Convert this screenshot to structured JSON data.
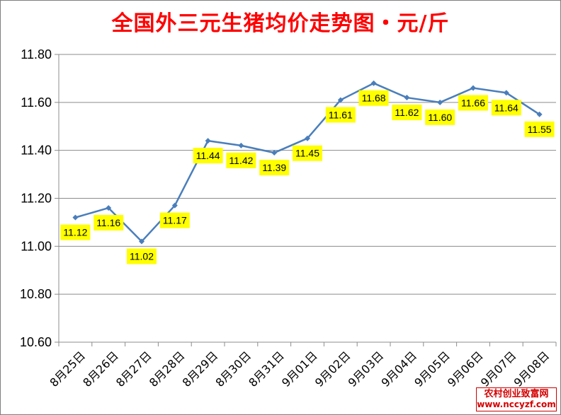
{
  "chart_data": {
    "type": "line",
    "title": "全国外三元生猪均价走势图・元/斤",
    "categories": [
      "8月25日",
      "8月26日",
      "8月27日",
      "8月28日",
      "8月29日",
      "8月30日",
      "8月31日",
      "9月01日",
      "9月02日",
      "9月03日",
      "9月04日",
      "9月05日",
      "9月06日",
      "9月07日",
      "9月08日"
    ],
    "values": [
      11.12,
      11.16,
      11.02,
      11.17,
      11.44,
      11.42,
      11.39,
      11.45,
      11.61,
      11.68,
      11.62,
      11.6,
      11.66,
      11.64,
      11.55
    ],
    "data_labels": [
      "11.12",
      "11.16",
      "11.02",
      "11.17",
      "11.44",
      "11.42",
      "11.39",
      "11.45",
      "11.61",
      "11.68",
      "11.62",
      "11.60",
      "11.66",
      "11.64",
      "11.55"
    ],
    "yticks": [
      "10.60",
      "10.80",
      "11.00",
      "11.20",
      "11.40",
      "11.60",
      "11.80"
    ],
    "ylim": [
      10.6,
      11.8
    ],
    "grid": true,
    "line_color": "#4a7ebb",
    "label_bg": "#ffff00"
  },
  "watermark": {
    "line1": "农村创业致富网",
    "line2": "www.nccyzf.com"
  }
}
